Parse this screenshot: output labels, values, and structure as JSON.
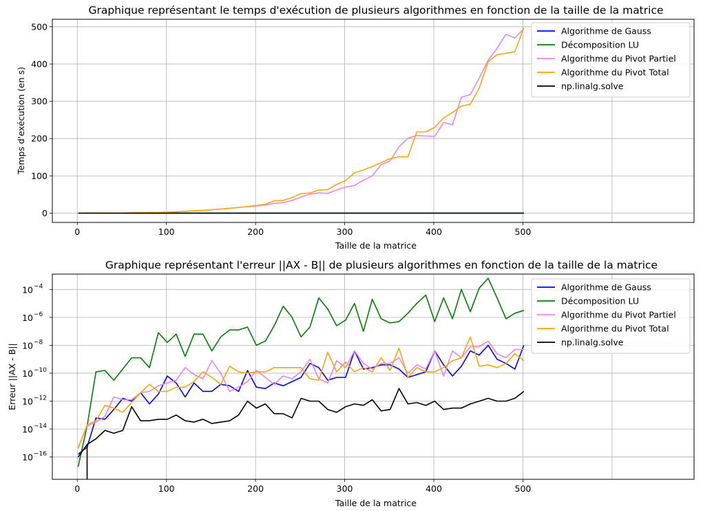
{
  "chart_data": [
    {
      "type": "line",
      "title": "Graphique représentant le temps d'exécution de plusieurs algorithmes en fonction de la taille de la matrice",
      "xlabel": "Taille de la matrice",
      "ylabel": "Temps d'exécution (en s)",
      "xlim": [
        -28,
        692
      ],
      "ylim": [
        -25,
        520
      ],
      "yscale": "linear",
      "grid": true,
      "legend_position": "top-right",
      "xticks": [
        0,
        100,
        200,
        300,
        400,
        500
      ],
      "xtick_labels": [
        "0",
        "100",
        "200",
        "300",
        "400",
        "500"
      ],
      "yticks": [
        0,
        100,
        200,
        300,
        400,
        500
      ],
      "ytick_labels": [
        "0",
        "100",
        "200",
        "300",
        "400",
        "500"
      ],
      "x": [
        1,
        11,
        21,
        31,
        41,
        51,
        61,
        71,
        81,
        91,
        101,
        111,
        121,
        131,
        141,
        151,
        161,
        171,
        181,
        191,
        201,
        211,
        221,
        231,
        241,
        251,
        261,
        271,
        281,
        291,
        301,
        311,
        321,
        331,
        341,
        351,
        361,
        371,
        381,
        391,
        401,
        411,
        421,
        431,
        441,
        451,
        461,
        471,
        481,
        491,
        501
      ],
      "series": [
        {
          "name": "Algorithme de Gauss",
          "color": "#0000ff",
          "values": [
            0,
            0,
            0,
            0,
            0,
            0,
            0,
            0,
            0,
            0,
            0,
            0,
            0,
            0,
            0,
            0,
            0,
            0,
            0,
            0,
            0,
            0,
            0,
            0,
            0,
            0,
            0,
            0,
            0,
            0,
            0,
            0,
            0,
            0,
            0,
            0,
            0,
            0,
            0,
            0,
            0,
            0,
            0,
            0,
            0,
            0,
            0,
            0,
            0,
            0,
            0
          ]
        },
        {
          "name": "Décomposition LU",
          "color": "#008000",
          "values": [
            0,
            0,
            0,
            0,
            0,
            0,
            0,
            0,
            0,
            0,
            0,
            0,
            0,
            0,
            0,
            0,
            0,
            0,
            0,
            0,
            0,
            0,
            0,
            0,
            0,
            0,
            0,
            0,
            0,
            0,
            0,
            0,
            0,
            0,
            0,
            0,
            0,
            0,
            0,
            0,
            0,
            0,
            0,
            0,
            0,
            0,
            0,
            0,
            0,
            0,
            0
          ]
        },
        {
          "name": "Algorithme du Pivot Partiel",
          "color": "#ee82ee",
          "values": [
            0,
            0,
            0,
            0.1,
            0.2,
            0.4,
            0.6,
            1,
            1.4,
            2,
            2.5,
            3.5,
            4.5,
            6,
            7.5,
            9,
            11,
            13,
            15,
            17.5,
            19,
            22,
            26,
            28,
            34,
            43,
            51,
            54,
            53,
            62,
            70,
            74,
            88,
            100,
            130,
            140,
            178,
            201,
            208,
            207,
            206,
            243,
            237,
            311,
            318,
            362,
            410,
            442,
            480,
            470,
            495
          ]
        },
        {
          "name": "Algorithme du Pivot Total",
          "color": "#ffa500",
          "values": [
            0,
            0,
            0,
            0.1,
            0.2,
            0.4,
            0.6,
            1,
            1.4,
            2,
            2.5,
            3.5,
            5,
            6,
            7,
            9,
            11,
            13,
            15,
            18,
            20,
            24,
            33,
            34,
            42,
            52,
            54,
            62,
            63,
            77,
            87,
            108,
            116,
            125,
            135,
            146,
            151,
            151,
            218,
            218,
            230,
            255,
            270,
            287,
            292,
            335,
            406,
            425,
            429,
            433,
            497
          ]
        },
        {
          "name": "np.linalg.solve",
          "color": "#000000",
          "values": [
            0,
            0,
            0,
            0,
            0,
            0,
            0,
            0,
            0,
            0,
            0,
            0,
            0,
            0,
            0,
            0,
            0,
            0,
            0,
            0,
            0,
            0,
            0,
            0,
            0,
            0,
            0,
            0,
            0,
            0,
            0,
            0,
            0,
            0,
            0,
            0,
            0,
            0,
            0,
            0,
            0,
            0,
            0,
            0,
            0,
            0,
            0,
            0,
            0,
            0,
            0
          ]
        }
      ]
    },
    {
      "type": "line",
      "title": "Graphique représentant l'erreur ||AX - B|| de plusieurs algorithmes en fonction de la taille de la matrice",
      "xlabel": "Taille de la matrice",
      "ylabel": "Erreur ||AX - B||",
      "xlim": [
        -28,
        692
      ],
      "ylim_log10": [
        -17.6,
        -2.9
      ],
      "yscale": "log",
      "grid": true,
      "legend_position": "top-right",
      "xticks": [
        0,
        100,
        200,
        300,
        400,
        500
      ],
      "xtick_labels": [
        "0",
        "100",
        "200",
        "300",
        "400",
        "500"
      ],
      "yticks_log10": [
        -16,
        -14,
        -12,
        -10,
        -8,
        -6,
        -4
      ],
      "ytick_labels": [
        "10",
        "10",
        "10",
        "10",
        "10",
        "10",
        "10"
      ],
      "ytick_exponents": [
        "−16",
        "−14",
        "−12",
        "−10",
        "−8",
        "−6",
        "−4"
      ],
      "x": [
        1,
        11,
        21,
        31,
        41,
        51,
        61,
        71,
        81,
        91,
        101,
        111,
        121,
        131,
        141,
        151,
        161,
        171,
        181,
        191,
        201,
        211,
        221,
        231,
        241,
        251,
        261,
        271,
        281,
        291,
        301,
        311,
        321,
        331,
        341,
        351,
        361,
        371,
        381,
        391,
        401,
        411,
        421,
        431,
        441,
        451,
        461,
        471,
        481,
        491,
        501
      ],
      "series": [
        {
          "name": "Algorithme de Gauss",
          "color": "#0000ff",
          "log10_values": [
            -15.8,
            -15.3,
            -13.2,
            -13.3,
            -12.6,
            -11.8,
            -12.0,
            -11.4,
            -12.2,
            -11.5,
            -10.2,
            -10.7,
            -11.7,
            -10.7,
            -11.3,
            -11.3,
            -10.8,
            -10.9,
            -11.3,
            -9.8,
            -11.0,
            -11.1,
            -10.7,
            -10.9,
            -10.6,
            -10.3,
            -9.3,
            -9.6,
            -10.5,
            -10.3,
            -10.3,
            -8.4,
            -9.7,
            -9.6,
            -9.4,
            -9.4,
            -9.7,
            -10.3,
            -10.1,
            -9.9,
            -8.4,
            -9.4,
            -10.2,
            -9.5,
            -8.4,
            -8.7,
            -8.0,
            -9.0,
            -9.3,
            -9.7,
            -8.0
          ]
        },
        {
          "name": "Décomposition LU",
          "color": "#008000",
          "log10_values": [
            -16.7,
            -13.8,
            -9.9,
            -9.8,
            -10.5,
            -9.7,
            -8.9,
            -8.9,
            -9.6,
            -7.1,
            -7.8,
            -7.2,
            -8.8,
            -7.2,
            -7.2,
            -8.4,
            -7.4,
            -6.9,
            -6.9,
            -6.7,
            -8.0,
            -7.7,
            -6.6,
            -5.2,
            -6.0,
            -7.4,
            -6.7,
            -4.6,
            -5.4,
            -6.6,
            -6.2,
            -5.0,
            -7.0,
            -4.7,
            -6.1,
            -6.4,
            -6.3,
            -5.7,
            -5.0,
            -4.4,
            -6.3,
            -4.6,
            -6.1,
            -4.0,
            -5.6,
            -3.9,
            -3.2,
            -4.6,
            -6.1,
            -5.7,
            -5.5
          ]
        },
        {
          "name": "Algorithme du Pivot Partiel",
          "color": "#ee82ee",
          "log10_values": [
            -15.3,
            -13.8,
            -13.5,
            -13.1,
            -11.7,
            -11.9,
            -11.9,
            -11.4,
            -11.3,
            -10.9,
            -10.7,
            -10.5,
            -9.6,
            -10.1,
            -10.4,
            -9.1,
            -10.0,
            -11.3,
            -11.0,
            -10.6,
            -9.8,
            -10.3,
            -10.8,
            -10.2,
            -10.4,
            -9.9,
            -9.0,
            -10.4,
            -10.7,
            -9.1,
            -9.6,
            -8.4,
            -9.3,
            -9.7,
            -9.3,
            -9.3,
            -8.9,
            -10.0,
            -9.4,
            -9.7,
            -8.4,
            -10.2,
            -8.4,
            -8.9,
            -8.1,
            -8.1,
            -7.7,
            -8.6,
            -8.9,
            -8.3,
            -8.3
          ]
        },
        {
          "name": "Algorithme du Pivot Total",
          "color": "#ffa500",
          "log10_values": [
            -15.4,
            -13.7,
            -13.4,
            -12.3,
            -12.5,
            -12.8,
            -12.1,
            -11.4,
            -10.8,
            -11.3,
            -11.3,
            -11.0,
            -11.0,
            -10.6,
            -9.9,
            -10.3,
            -10.8,
            -9.5,
            -9.9,
            -10.0,
            -9.9,
            -9.9,
            -9.6,
            -9.6,
            -9.6,
            -9.6,
            -10.4,
            -10.5,
            -8.5,
            -9.9,
            -9.2,
            -9.9,
            -9.6,
            -9.9,
            -8.9,
            -9.8,
            -8.2,
            -10.3,
            -9.6,
            -9.9,
            -9.9,
            -9.6,
            -9.1,
            -8.9,
            -7.4,
            -9.5,
            -9.4,
            -9.6,
            -9.3,
            -8.6,
            -9.1
          ]
        },
        {
          "name": "np.linalg.solve",
          "color": "#000000",
          "log10_values": [
            -16.0,
            -15.1,
            -14.7,
            -14.1,
            -14.3,
            -14.1,
            -12.4,
            -13.4,
            -13.4,
            -13.3,
            -13.3,
            -13.0,
            -13.4,
            -13.5,
            -13.3,
            -13.6,
            -13.5,
            -13.4,
            -13.0,
            -12.0,
            -12.5,
            -12.2,
            -12.9,
            -12.9,
            -13.2,
            -11.8,
            -12.0,
            -12.0,
            -12.6,
            -12.8,
            -12.4,
            -12.2,
            -12.3,
            -11.9,
            -12.7,
            -12.6,
            -11.1,
            -12.2,
            -12.1,
            -12.3,
            -12.0,
            -12.6,
            -12.5,
            -12.5,
            -12.2,
            -12.0,
            -11.8,
            -12.0,
            -12.0,
            -11.8,
            -11.3
          ]
        }
      ],
      "extra_segments": [
        {
          "series": "np.linalg.solve",
          "note": "",
          "x": [
            11,
            11
          ],
          "log10_values": [
            -15.1,
            -17.6
          ]
        }
      ]
    }
  ]
}
